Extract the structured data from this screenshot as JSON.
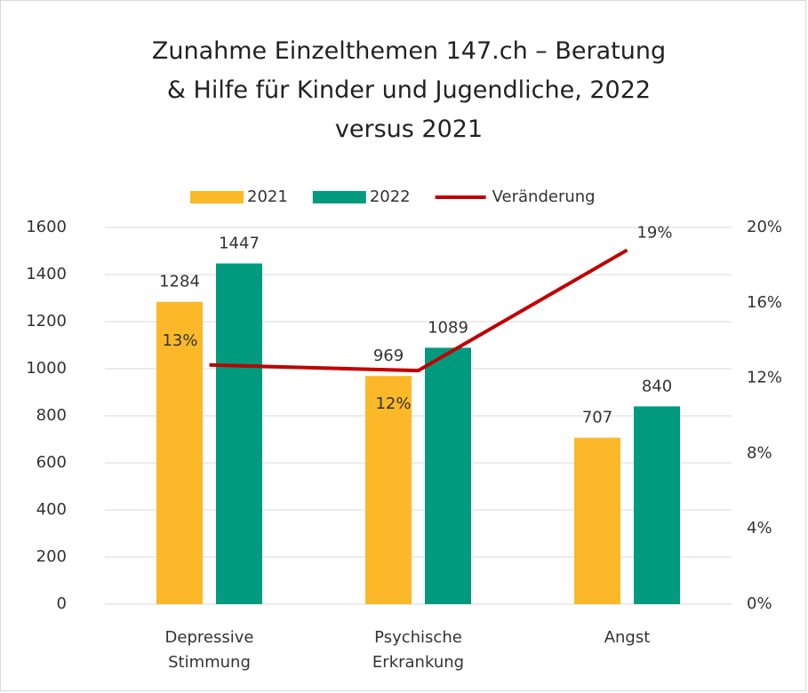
{
  "chart_data": {
    "type": "bar",
    "title": "Zunahme Einzelthemen 147.ch – Beratung & Hilfe für Kinder und Jugendliche, 2022 versus 2021",
    "categories": [
      "Depressive Stimmung",
      "Psychische Erkrankung",
      "Angst"
    ],
    "series": [
      {
        "name": "2021",
        "color": "#fbb829",
        "values": [
          1284,
          969,
          707
        ]
      },
      {
        "name": "2022",
        "color": "#009b7f",
        "values": [
          1447,
          1089,
          840
        ]
      },
      {
        "name": "Veränderung",
        "color": "#c00000",
        "type": "line",
        "axis": "y2",
        "values": [
          12.7,
          12.4,
          18.8
        ],
        "value_labels": [
          "13%",
          "12%",
          "19%"
        ]
      }
    ],
    "ylim": [
      0,
      1600
    ],
    "yticks": [
      0,
      200,
      400,
      600,
      800,
      1000,
      1200,
      1400,
      1600
    ],
    "y2lim": [
      0,
      20
    ],
    "y2ticks": [
      {
        "value": 0,
        "label": "0%"
      },
      {
        "value": 4,
        "label": "4%"
      },
      {
        "value": 8,
        "label": "8%"
      },
      {
        "value": 12,
        "label": "12%"
      },
      {
        "value": 16,
        "label": "16%"
      },
      {
        "value": 20,
        "label": "20%"
      }
    ],
    "grid": true,
    "legend": "top"
  }
}
